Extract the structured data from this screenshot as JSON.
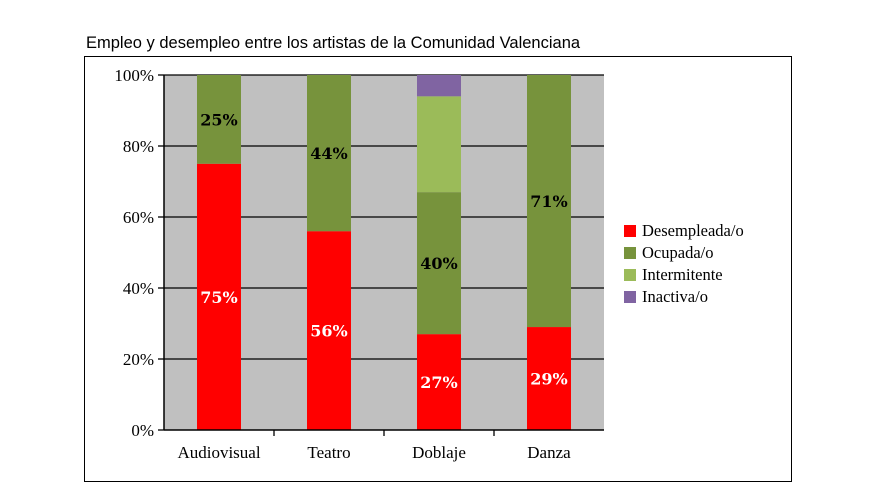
{
  "chart_data": {
    "type": "bar",
    "stacked": true,
    "title": "Empleo y desempleo entre los artistas de la Comunidad Valenciana",
    "xlabel": "",
    "ylabel": "",
    "ylim": [
      0,
      100
    ],
    "y_ticks": [
      "0%",
      "20%",
      "40%",
      "60%",
      "80%",
      "100%"
    ],
    "grid": true,
    "legend_position": "right",
    "categories": [
      "Audiovisual",
      "Teatro",
      "Doblaje",
      "Danza"
    ],
    "series": [
      {
        "name": "Desempleada/o",
        "color": "#ff0000",
        "values": [
          75,
          56,
          27,
          29
        ],
        "labels": [
          "75%",
          "56%",
          "27%",
          "29%"
        ],
        "label_color": "#ffffff"
      },
      {
        "name": "Ocupada/o",
        "color": "#77933c",
        "values": [
          25,
          44,
          40,
          71
        ],
        "labels": [
          "25%",
          "44%",
          "40%",
          "71%"
        ],
        "label_color": "#000000"
      },
      {
        "name": "Intermitente",
        "color": "#9bbb59",
        "values": [
          0,
          0,
          27,
          0
        ],
        "labels": [
          "",
          "",
          "",
          ""
        ],
        "label_color": "#000000"
      },
      {
        "name": "Inactiva/o",
        "color": "#8064a2",
        "values": [
          0,
          0,
          6,
          0
        ],
        "labels": [
          "",
          "",
          "",
          ""
        ],
        "label_color": "#000000"
      }
    ],
    "plot_background": "#c0c0c0"
  }
}
